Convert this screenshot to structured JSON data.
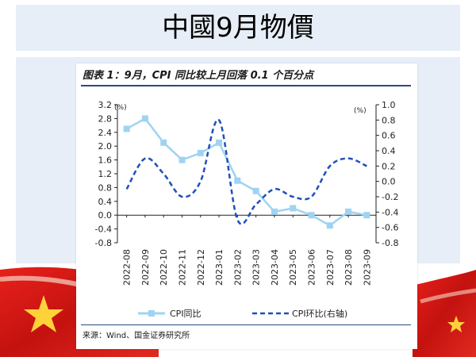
{
  "slide_title": "中國9月物價",
  "chart_title": "图表 1：9月，CPI 同比较上月回落 0.1 个百分点",
  "source": "来源：Wind、国金证券研究所",
  "chart_data": {
    "type": "line",
    "categories": [
      "2022-08",
      "2022-09",
      "2022-10",
      "2022-11",
      "2022-12",
      "2023-01",
      "2023-02",
      "2023-03",
      "2023-04",
      "2023-05",
      "2023-06",
      "2023-07",
      "2023-08",
      "2023-09"
    ],
    "left_unit": "(%)",
    "right_unit": "(%)",
    "left_ylim": [
      -0.8,
      3.2
    ],
    "right_ylim": [
      -0.8,
      1.0
    ],
    "left_ticks": [
      "3.2",
      "2.8",
      "2.4",
      "2.0",
      "1.6",
      "1.2",
      "0.8",
      "0.4",
      "0.0",
      "-0.4",
      "-0.8"
    ],
    "right_ticks": [
      "1.0",
      "0.8",
      "0.6",
      "0.4",
      "0.2",
      "0.0",
      "-0.2",
      "-0.4",
      "-0.6",
      "-0.8"
    ],
    "series": [
      {
        "name": "CPI同比",
        "axis": "left",
        "style": "solid-marker",
        "color": "#9fd3f2",
        "values": [
          2.5,
          2.8,
          2.1,
          1.6,
          1.8,
          2.1,
          1.0,
          0.7,
          0.1,
          0.2,
          0.0,
          -0.3,
          0.1,
          0.0
        ]
      },
      {
        "name": "CPI环比(右轴)",
        "axis": "right",
        "style": "dashed",
        "color": "#1f4fbf",
        "values": [
          -0.1,
          0.3,
          0.1,
          -0.2,
          0.0,
          0.8,
          -0.5,
          -0.3,
          -0.1,
          -0.2,
          -0.2,
          0.2,
          0.3,
          0.2
        ]
      }
    ],
    "grid": false,
    "legend_position": "bottom"
  }
}
